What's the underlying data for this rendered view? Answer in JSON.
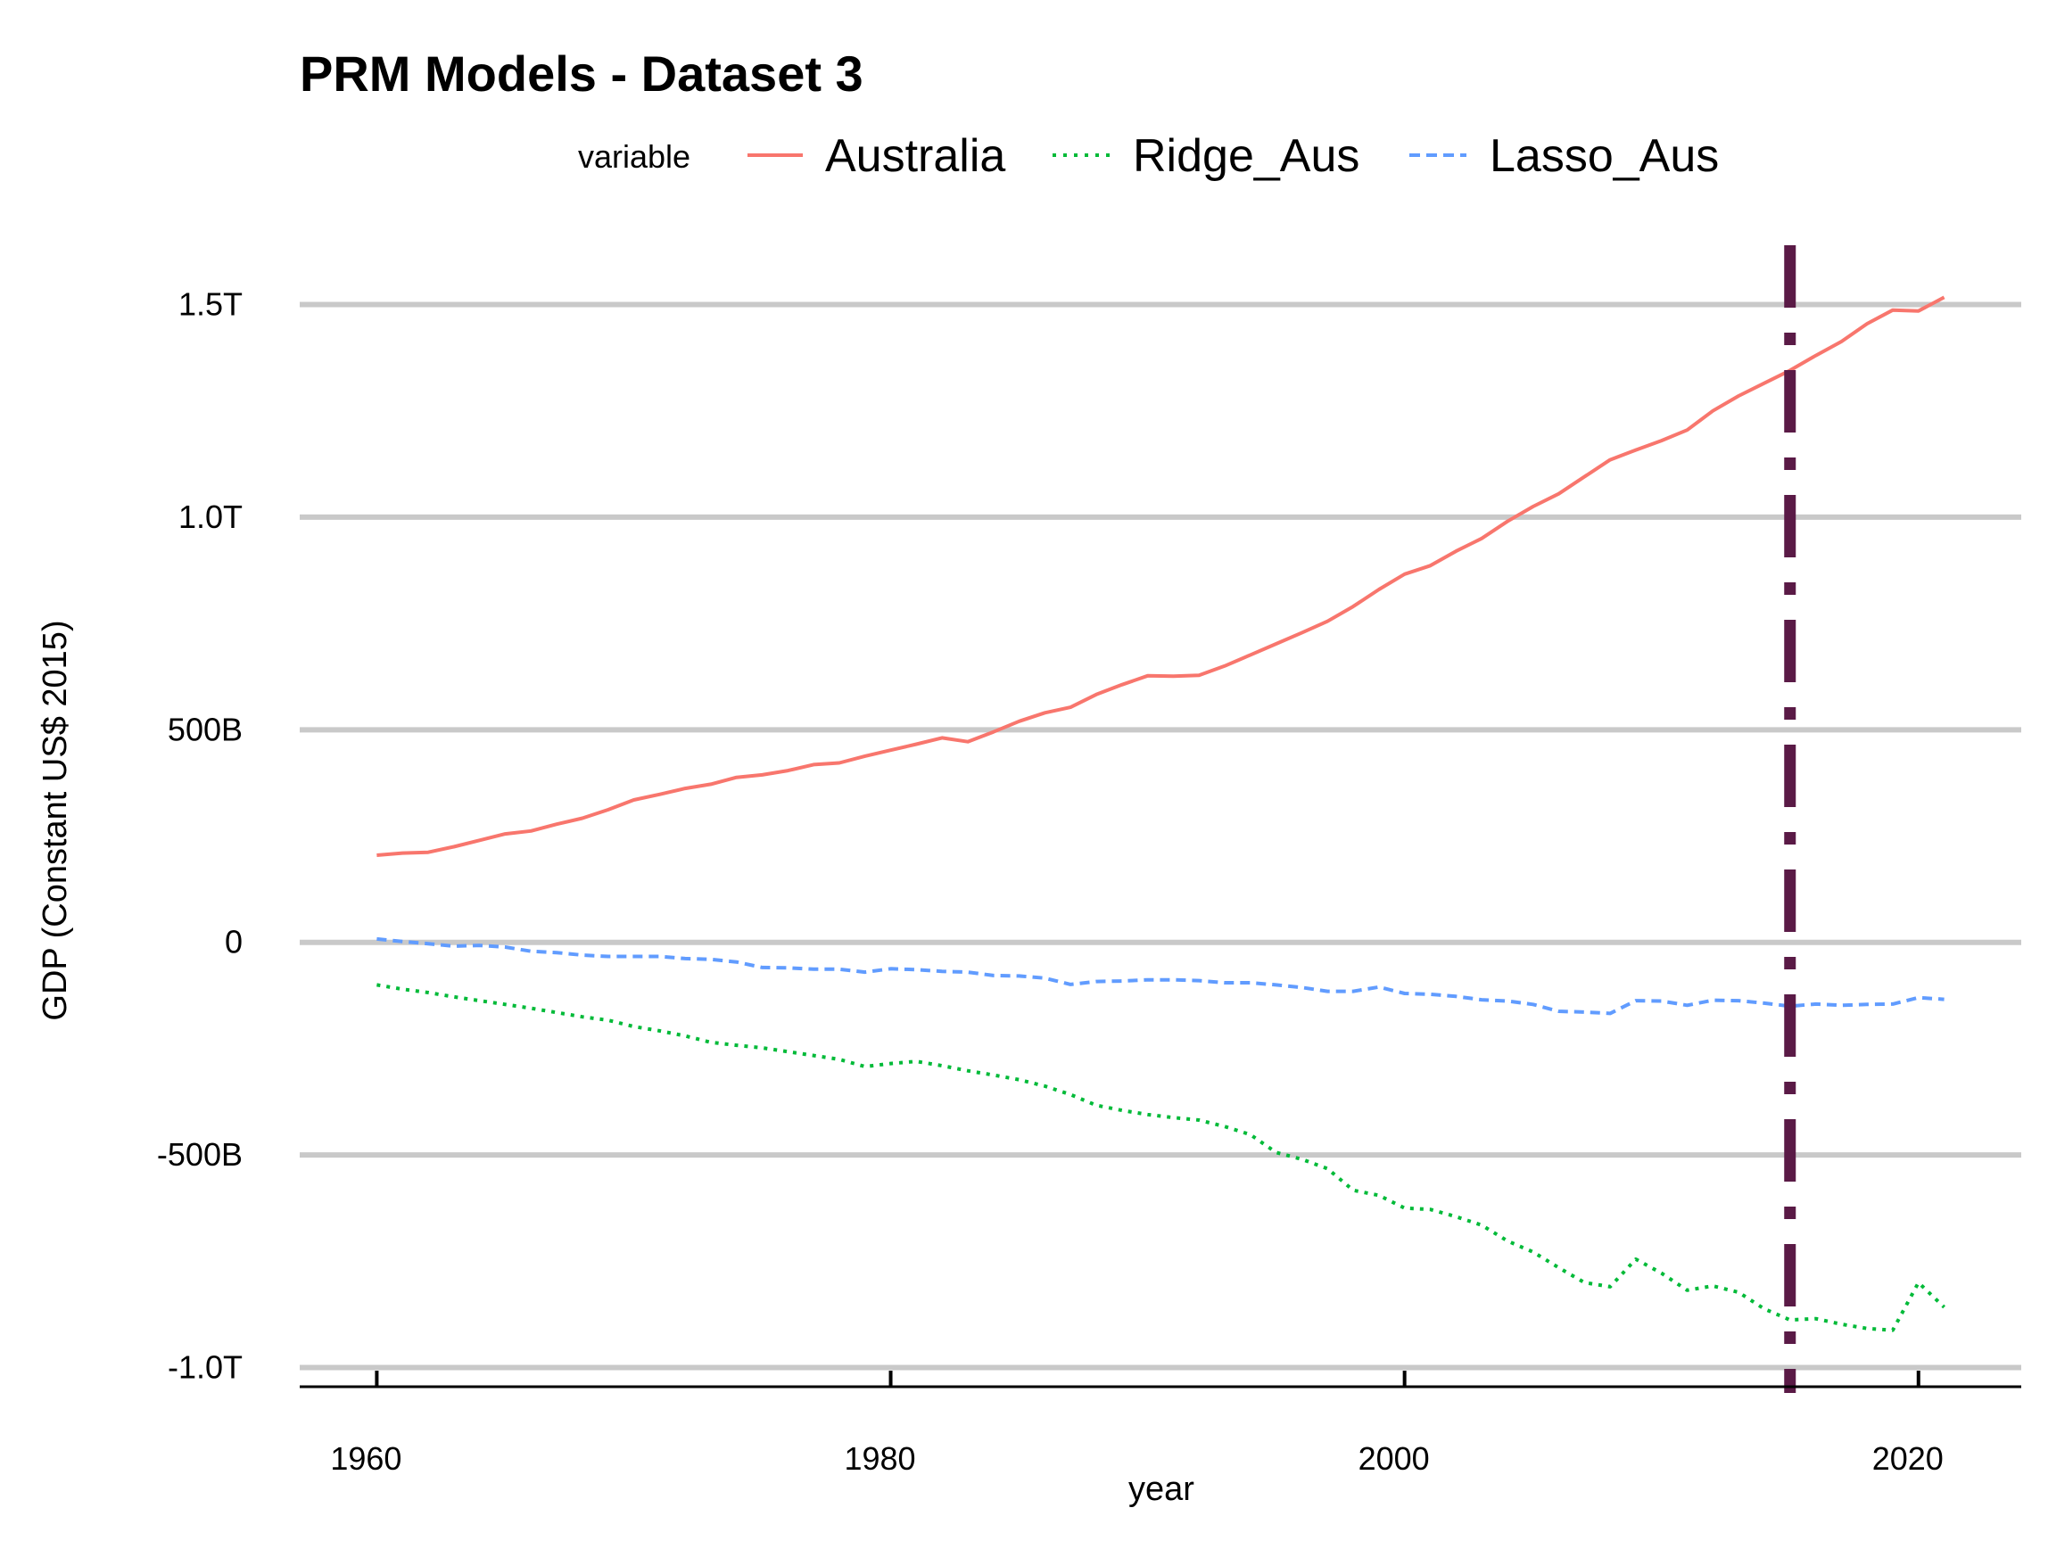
{
  "chart_data": {
    "type": "line",
    "title": "PRM Models - Dataset 3",
    "xlabel": "year",
    "ylabel": "GDP (Constant US$ 2015)",
    "xlim": [
      1957,
      2024
    ],
    "ylim": [
      -1045000000000,
      1650000000000
    ],
    "x_ticks": [
      1960,
      1980,
      2000,
      2020
    ],
    "x_tick_labels": [
      "1960",
      "1980",
      "2000",
      "2020"
    ],
    "y_ticks": [
      -1000000000000,
      -500000000000,
      0,
      500000000000,
      1000000000000,
      1500000000000
    ],
    "y_tick_labels": [
      "-1.0T",
      "-500B",
      "0",
      "500B",
      "1.0T",
      "1.5T"
    ],
    "grid": "horizontal",
    "legend": {
      "title": "variable",
      "position": "top"
    },
    "vline": {
      "x": 2015,
      "color": "#5a1a46",
      "style": "dashdot"
    },
    "x": [
      1960,
      1961,
      1962,
      1963,
      1964,
      1965,
      1966,
      1967,
      1968,
      1969,
      1970,
      1971,
      1972,
      1973,
      1974,
      1975,
      1976,
      1977,
      1978,
      1979,
      1980,
      1981,
      1982,
      1983,
      1984,
      1985,
      1986,
      1987,
      1988,
      1989,
      1990,
      1991,
      1992,
      1993,
      1994,
      1995,
      1996,
      1997,
      1998,
      1999,
      2000,
      2001,
      2002,
      2003,
      2004,
      2005,
      2006,
      2007,
      2008,
      2009,
      2010,
      2011,
      2012,
      2013,
      2014,
      2015,
      2016,
      2017,
      2018,
      2019,
      2020,
      2021
    ],
    "series": [
      {
        "name": "Australia",
        "color": "#f8766d",
        "dash": "solid",
        "values": [
          205000000000,
          210000000000,
          212000000000,
          225000000000,
          240000000000,
          255000000000,
          262000000000,
          278000000000,
          292000000000,
          312000000000,
          335000000000,
          348000000000,
          362000000000,
          372000000000,
          388000000000,
          394000000000,
          404000000000,
          418000000000,
          422000000000,
          438000000000,
          452000000000,
          466000000000,
          481000000000,
          472000000000,
          495000000000,
          520000000000,
          540000000000,
          553000000000,
          583000000000,
          606000000000,
          627000000000,
          626000000000,
          628000000000,
          650000000000,
          676000000000,
          702000000000,
          728000000000,
          755000000000,
          790000000000,
          830000000000,
          866000000000,
          886000000000,
          920000000000,
          950000000000,
          990000000000,
          1025000000000,
          1055000000000,
          1095000000000,
          1135000000000,
          1158000000000,
          1180000000000,
          1205000000000,
          1250000000000,
          1285000000000,
          1315000000000,
          1345000000000,
          1380000000000,
          1413000000000,
          1455000000000,
          1487000000000,
          1485000000000,
          1517000000000
        ]
      },
      {
        "name": "Ridge_Aus",
        "color": "#00ba38",
        "dash": "dotted",
        "values": [
          -100000000000,
          -110000000000,
          -118000000000,
          -128000000000,
          -137000000000,
          -146000000000,
          -155000000000,
          -165000000000,
          -175000000000,
          -183000000000,
          -198000000000,
          -208000000000,
          -220000000000,
          -235000000000,
          -242000000000,
          -248000000000,
          -257000000000,
          -266000000000,
          -275000000000,
          -292000000000,
          -285000000000,
          -280000000000,
          -290000000000,
          -302000000000,
          -312000000000,
          -323000000000,
          -338000000000,
          -358000000000,
          -383000000000,
          -395000000000,
          -405000000000,
          -412000000000,
          -418000000000,
          -433000000000,
          -452000000000,
          -494000000000,
          -510000000000,
          -532000000000,
          -583000000000,
          -595000000000,
          -625000000000,
          -628000000000,
          -645000000000,
          -665000000000,
          -702000000000,
          -728000000000,
          -765000000000,
          -800000000000,
          -810000000000,
          -745000000000,
          -778000000000,
          -818000000000,
          -808000000000,
          -823000000000,
          -862000000000,
          -888000000000,
          -885000000000,
          -898000000000,
          -908000000000,
          -912000000000,
          -800000000000,
          -858000000000
        ]
      },
      {
        "name": "Lasso_Aus",
        "color": "#619cff",
        "dash": "dashed",
        "values": [
          8000000000,
          2000000000,
          -3000000000,
          -9000000000,
          -7000000000,
          -11000000000,
          -21000000000,
          -24000000000,
          -30000000000,
          -33000000000,
          -33000000000,
          -33000000000,
          -38000000000,
          -40000000000,
          -46000000000,
          -59000000000,
          -60000000000,
          -63000000000,
          -63000000000,
          -70000000000,
          -62000000000,
          -64000000000,
          -68000000000,
          -70000000000,
          -78000000000,
          -79000000000,
          -84000000000,
          -99000000000,
          -92000000000,
          -91000000000,
          -88000000000,
          -88000000000,
          -90000000000,
          -95000000000,
          -95000000000,
          -100000000000,
          -106000000000,
          -115000000000,
          -115000000000,
          -105000000000,
          -120000000000,
          -122000000000,
          -127000000000,
          -135000000000,
          -138000000000,
          -146000000000,
          -162000000000,
          -164000000000,
          -167000000000,
          -137000000000,
          -138000000000,
          -148000000000,
          -136000000000,
          -137000000000,
          -143000000000,
          -150000000000,
          -145000000000,
          -148000000000,
          -146000000000,
          -145000000000,
          -130000000000,
          -134000000000
        ]
      }
    ]
  }
}
